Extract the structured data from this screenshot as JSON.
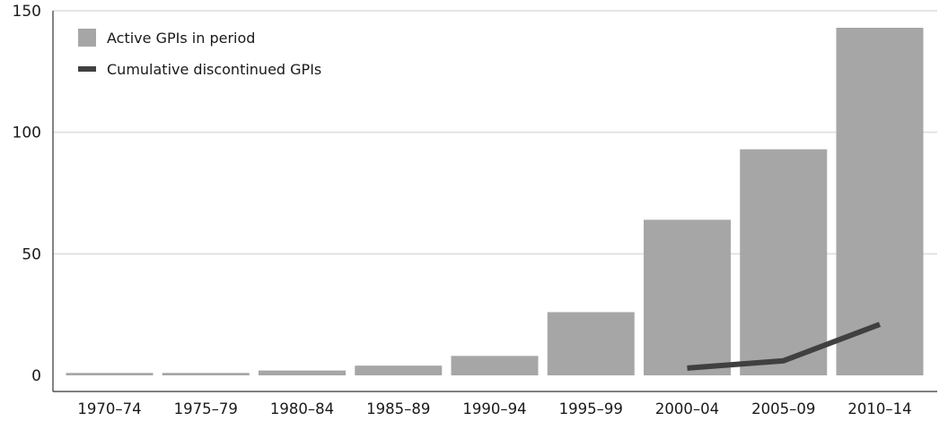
{
  "chart_data": {
    "type": "bar",
    "categories": [
      "1970–74",
      "1975–79",
      "1980–84",
      "1985–89",
      "1990–94",
      "1995–99",
      "2000–04",
      "2005–09",
      "2010–14"
    ],
    "series": [
      {
        "name": "Active GPIs in period",
        "type": "bar",
        "color": "#a6a6a6",
        "values": [
          1,
          1,
          2,
          4,
          8,
          26,
          64,
          93,
          143
        ]
      },
      {
        "name": "Cumulative discontinued GPIs",
        "type": "line",
        "color": "#404040",
        "values": [
          null,
          null,
          null,
          null,
          null,
          null,
          3,
          6,
          21
        ]
      }
    ],
    "title": "",
    "xlabel": "",
    "ylabel": "",
    "ylim": [
      0,
      150
    ],
    "yticks": [
      0,
      50,
      100,
      150
    ],
    "grid": true,
    "legend_position": "top-left"
  }
}
